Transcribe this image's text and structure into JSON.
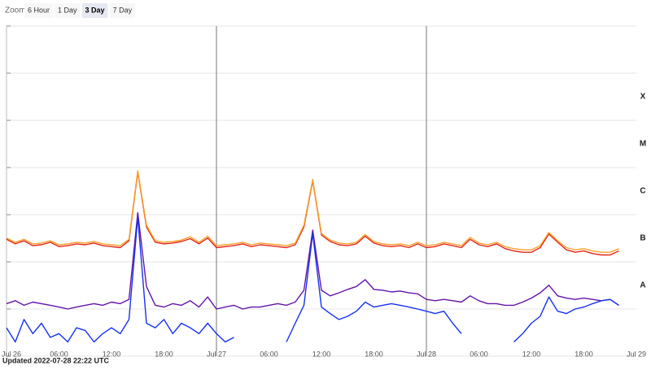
{
  "zoom": {
    "label": "Zoom",
    "options": [
      "6 Hour",
      "1 Day",
      "3 Day",
      "7 Day"
    ],
    "selected_index": 2
  },
  "updated": "Updated 2022-07-28 22:22 UTC",
  "chart_data": {
    "type": "line",
    "log_scale": true,
    "grid": true,
    "x": [
      "2022-07-26T00:00",
      "2022-07-26T01:00",
      "2022-07-26T02:00",
      "2022-07-26T03:00",
      "2022-07-26T04:00",
      "2022-07-26T05:00",
      "2022-07-26T06:00",
      "2022-07-26T07:00",
      "2022-07-26T08:00",
      "2022-07-26T09:00",
      "2022-07-26T10:00",
      "2022-07-26T11:00",
      "2022-07-26T12:00",
      "2022-07-26T13:00",
      "2022-07-26T14:00",
      "2022-07-26T15:00",
      "2022-07-26T16:00",
      "2022-07-26T17:00",
      "2022-07-26T18:00",
      "2022-07-26T19:00",
      "2022-07-26T20:00",
      "2022-07-26T21:00",
      "2022-07-26T22:00",
      "2022-07-26T23:00",
      "2022-07-27T00:00",
      "2022-07-27T01:00",
      "2022-07-27T02:00",
      "2022-07-27T03:00",
      "2022-07-27T04:00",
      "2022-07-27T05:00",
      "2022-07-27T06:00",
      "2022-07-27T07:00",
      "2022-07-27T08:00",
      "2022-07-27T09:00",
      "2022-07-27T10:00",
      "2022-07-27T11:00",
      "2022-07-27T12:00",
      "2022-07-27T13:00",
      "2022-07-27T14:00",
      "2022-07-27T15:00",
      "2022-07-27T16:00",
      "2022-07-27T17:00",
      "2022-07-27T18:00",
      "2022-07-27T19:00",
      "2022-07-27T20:00",
      "2022-07-27T21:00",
      "2022-07-27T22:00",
      "2022-07-27T23:00",
      "2022-07-28T00:00",
      "2022-07-28T01:00",
      "2022-07-28T02:00",
      "2022-07-28T03:00",
      "2022-07-28T04:00",
      "2022-07-28T05:00",
      "2022-07-28T06:00",
      "2022-07-28T07:00",
      "2022-07-28T08:00",
      "2022-07-28T09:00",
      "2022-07-28T10:00",
      "2022-07-28T11:00",
      "2022-07-28T12:00",
      "2022-07-28T13:00",
      "2022-07-28T14:00",
      "2022-07-28T15:00",
      "2022-07-28T16:00",
      "2022-07-28T17:00",
      "2022-07-28T18:00",
      "2022-07-28T19:00",
      "2022-07-28T20:00",
      "2022-07-28T21:00",
      "2022-07-28T22:00"
    ],
    "series": [
      {
        "color": "#e3261b",
        "values": [
          3e-07,
          2.4e-07,
          2.8e-07,
          2.2e-07,
          2.3e-07,
          2.6e-07,
          2.1e-07,
          2.2e-07,
          2.4e-07,
          2.3e-07,
          2.5e-07,
          2.2e-07,
          2.1e-07,
          2e-07,
          2.8e-07,
          8e-06,
          5.5e-07,
          2.6e-07,
          2.4e-07,
          2.5e-07,
          2.7e-07,
          3.1e-07,
          2.4e-07,
          3.2e-07,
          2e-07,
          2.1e-07,
          2.2e-07,
          2.4e-07,
          2.1e-07,
          2.3e-07,
          2.2e-07,
          2.1e-07,
          2e-07,
          2.3e-07,
          5.5e-07,
          5.3e-06,
          3.7e-07,
          2.7e-07,
          2.3e-07,
          2.2e-07,
          2.4e-07,
          3.5e-07,
          2.5e-07,
          2.2e-07,
          2.1e-07,
          2.2e-07,
          2e-07,
          2.4e-07,
          2e-07,
          2.1e-07,
          2.4e-07,
          2.2e-07,
          2e-07,
          3e-07,
          2.3e-07,
          2.1e-07,
          2.4e-07,
          1.9e-07,
          1.7e-07,
          1.6e-07,
          1.6e-07,
          2e-07,
          3.9e-07,
          2.6e-07,
          1.8e-07,
          1.6e-07,
          1.7e-07,
          1.5e-07,
          1.4e-07,
          1.4e-07,
          1.7e-07
        ]
      },
      {
        "color": "#f7a12b",
        "values": [
          3.2e-07,
          2.6e-07,
          3e-07,
          2.4e-07,
          2.5e-07,
          2.8e-07,
          2.3e-07,
          2.4e-07,
          2.6e-07,
          2.5e-07,
          2.7e-07,
          2.4e-07,
          2.3e-07,
          2.2e-07,
          3e-07,
          8.5e-06,
          6e-07,
          2.8e-07,
          2.6e-07,
          2.7e-07,
          2.9e-07,
          3.4e-07,
          2.6e-07,
          3.5e-07,
          2.2e-07,
          2.3e-07,
          2.4e-07,
          2.6e-07,
          2.3e-07,
          2.5e-07,
          2.4e-07,
          2.3e-07,
          2.2e-07,
          2.5e-07,
          6e-07,
          5.6e-06,
          4e-07,
          2.9e-07,
          2.5e-07,
          2.4e-07,
          2.6e-07,
          3.8e-07,
          2.7e-07,
          2.4e-07,
          2.3e-07,
          2.4e-07,
          2.2e-07,
          2.6e-07,
          2.2e-07,
          2.3e-07,
          2.6e-07,
          2.4e-07,
          2.2e-07,
          3.3e-07,
          2.5e-07,
          2.3e-07,
          2.6e-07,
          2.1e-07,
          1.9e-07,
          1.8e-07,
          1.8e-07,
          2.2e-07,
          4.2e-07,
          2.8e-07,
          2e-07,
          1.8e-07,
          1.9e-07,
          1.7e-07,
          1.6e-07,
          1.6e-07,
          1.9e-07
        ]
      },
      {
        "color": "#6414a8",
        "values": [
          1.3e-08,
          1.5e-08,
          1.2e-08,
          1.4e-08,
          1.3e-08,
          1.2e-08,
          1.1e-08,
          1e-08,
          1.1e-08,
          1.2e-08,
          1.3e-08,
          1.2e-08,
          1.4e-08,
          1.3e-08,
          1.6e-08,
          1.1e-06,
          3e-08,
          1.2e-08,
          1.1e-08,
          1.3e-08,
          1.2e-08,
          1.5e-08,
          1.1e-08,
          1.8e-08,
          1e-08,
          1.1e-08,
          1.2e-08,
          1e-08,
          1.1e-08,
          1.1e-08,
          1.2e-08,
          1.3e-08,
          1.2e-08,
          1.4e-08,
          2.5e-08,
          4.7e-07,
          2.5e-08,
          1.9e-08,
          2.2e-08,
          2.6e-08,
          3e-08,
          4.2e-08,
          2.6e-08,
          2.5e-08,
          2.3e-08,
          2.4e-08,
          2.2e-08,
          2.1e-08,
          1.6e-08,
          1.5e-08,
          1.6e-08,
          1.5e-08,
          1.4e-08,
          1.9e-08,
          1.5e-08,
          1.3e-08,
          1.3e-08,
          1.2e-08,
          1.2e-08,
          1.4e-08,
          1.7e-08,
          2.2e-08,
          3.2e-08,
          1.9e-08,
          1.7e-08,
          1.6e-08,
          1.7e-08,
          1.6e-08,
          1.5e-08,
          1.6e-08,
          1.2e-08
        ]
      },
      {
        "color": "#1631f2",
        "values": [
          4e-09,
          2e-09,
          6e-09,
          3e-09,
          5e-09,
          2.5e-09,
          3e-09,
          2e-09,
          4e-09,
          3.5e-09,
          2e-09,
          3e-09,
          4e-09,
          3e-09,
          6e-09,
          9e-07,
          5e-09,
          4e-09,
          6e-09,
          3e-09,
          5e-09,
          4e-09,
          3e-09,
          5e-09,
          3e-09,
          2e-09,
          2.5e-09,
          null,
          null,
          null,
          null,
          null,
          2e-09,
          5e-09,
          1.2e-08,
          4e-07,
          1.1e-08,
          8e-09,
          6e-09,
          7e-09,
          9e-09,
          1.4e-08,
          1.1e-08,
          1.2e-08,
          1.3e-08,
          1.2e-08,
          1.1e-08,
          1e-08,
          9e-09,
          8e-09,
          9e-09,
          5e-09,
          3e-09,
          null,
          null,
          null,
          null,
          null,
          2e-09,
          3e-09,
          5e-09,
          7e-09,
          1.8e-08,
          9e-09,
          8e-09,
          1e-08,
          1.1e-08,
          1.3e-08,
          1.5e-08,
          1.6e-08,
          1.2e-08
        ]
      }
    ],
    "xlim": [
      "2022-07-26T00:00",
      "2022-07-29T00:00"
    ],
    "xticks": [
      {
        "value": "2022-07-26T00:00",
        "label": "Jul 26"
      },
      {
        "value": "2022-07-26T06:00",
        "label": "06:00"
      },
      {
        "value": "2022-07-26T12:00",
        "label": "12:00"
      },
      {
        "value": "2022-07-26T18:00",
        "label": "18:00"
      },
      {
        "value": "2022-07-27T00:00",
        "label": "Jul 27"
      },
      {
        "value": "2022-07-27T06:00",
        "label": "06:00"
      },
      {
        "value": "2022-07-27T12:00",
        "label": "12:00"
      },
      {
        "value": "2022-07-27T18:00",
        "label": "18:00"
      },
      {
        "value": "2022-07-28T00:00",
        "label": "Jul 28"
      },
      {
        "value": "2022-07-28T06:00",
        "label": "06:00"
      },
      {
        "value": "2022-07-28T12:00",
        "label": "12:00"
      },
      {
        "value": "2022-07-28T18:00",
        "label": "18:00"
      },
      {
        "value": "2022-07-29T00:00",
        "label": "Jul 29"
      }
    ],
    "ylim": [
      1e-09,
      0.01
    ],
    "yticks": [
      1e-09,
      1e-08,
      1e-07,
      1e-06,
      1e-05,
      0.0001,
      0.001,
      0.01
    ],
    "class_ticks": [
      {
        "value": 3.16e-08,
        "label": "A"
      },
      {
        "value": 3.16e-07,
        "label": "B"
      },
      {
        "value": 3.16e-06,
        "label": "C"
      },
      {
        "value": 3.16e-05,
        "label": "M"
      },
      {
        "value": 0.000316,
        "label": "X"
      }
    ]
  }
}
